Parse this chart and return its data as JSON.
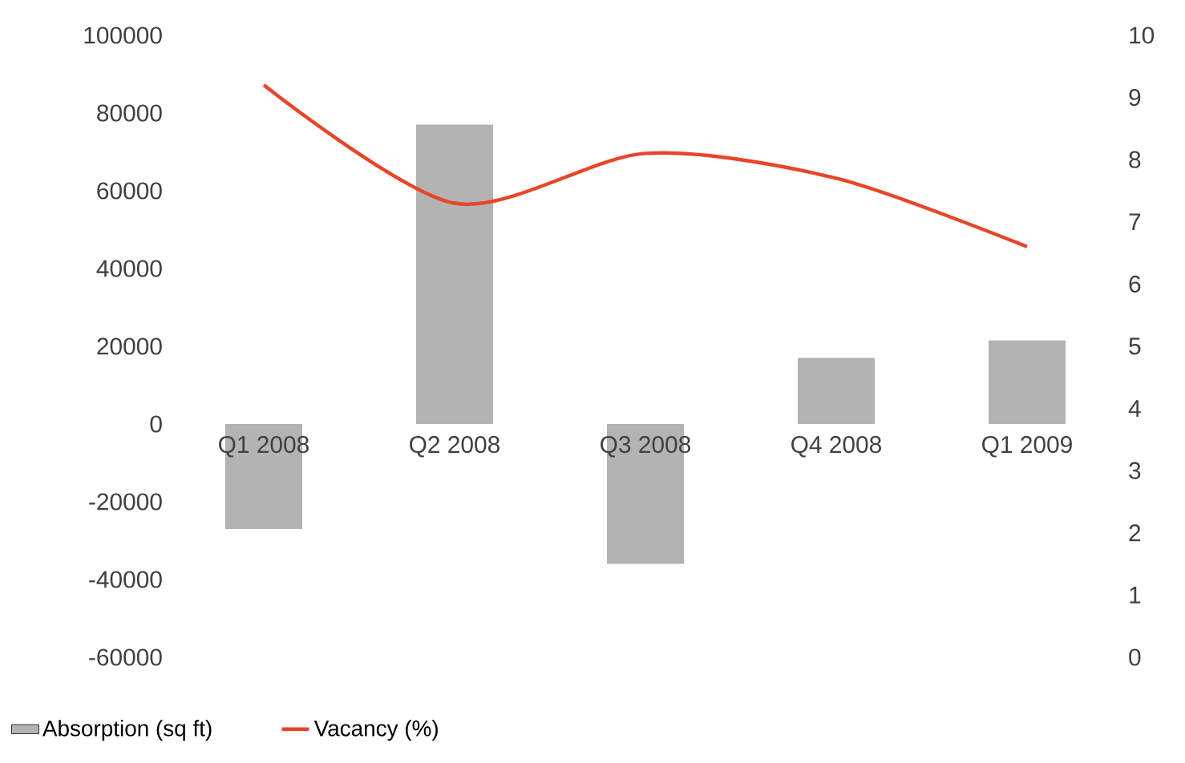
{
  "chart_data": {
    "type": "bar",
    "categories": [
      "Q1 2008",
      "Q2 2008",
      "Q3 2008",
      "Q4 2008",
      "Q1 2009"
    ],
    "series": [
      {
        "name": "Absorption (sq ft)",
        "color": "#b3b3b3",
        "values": [
          -27000,
          77000,
          -36000,
          17000,
          21500
        ]
      },
      {
        "name": "Vacancy (%)",
        "type": "line",
        "axis": "y2",
        "color": "#e8452a",
        "values": [
          9.2,
          7.3,
          8.1,
          7.7,
          6.6
        ]
      }
    ],
    "ylim": [
      -60000,
      100000
    ],
    "yticks": [
      -60000,
      -40000,
      -20000,
      0,
      20000,
      40000,
      60000,
      80000,
      100000
    ],
    "y2lim": [
      0,
      10
    ],
    "y2ticks": [
      0,
      1,
      2,
      3,
      4,
      5,
      6,
      7,
      8,
      9,
      10
    ],
    "legend": "bottom"
  }
}
